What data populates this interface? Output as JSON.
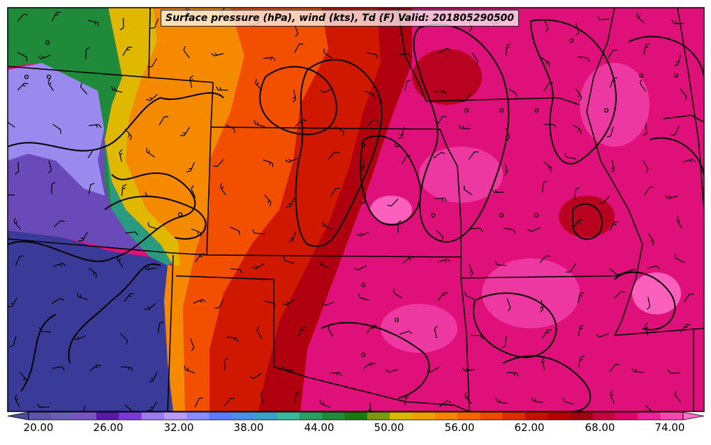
{
  "title": "Surface pressure (hPa), wind (kts), Td (F) Valid: 201805290500",
  "colorbar": {
    "labels": [
      "20.00",
      "26.00",
      "32.00",
      "38.00",
      "44.00",
      "50.00",
      "56.00",
      "62.00",
      "68.00",
      "74.00"
    ],
    "colors": [
      "#4b4b9a",
      "#5a55a8",
      "#6a5fb6",
      "#7a55c0",
      "#5a18a8",
      "#7a3ad8",
      "#9a7aee",
      "#b89cf8",
      "#8a8aff",
      "#5a7aff",
      "#4a90e8",
      "#3aa0c8",
      "#3ab89a",
      "#2aa060",
      "#1e8a3a",
      "#1a7a10",
      "#7a9a10",
      "#d8b800",
      "#f0a000",
      "#f88400",
      "#f86400",
      "#f04800",
      "#e02a00",
      "#c81000",
      "#b80000",
      "#a00010",
      "#c80040",
      "#e0006a",
      "#f0209a",
      "#f848b0",
      "#ff70c8"
    ]
  },
  "map": {
    "field": "dewpoint",
    "palette": {
      "deep_blue": "#3a3a98",
      "purple": "#6a4ab8",
      "light_purple": "#9a8aee",
      "teal": "#2a9a80",
      "green": "#1e8a3a",
      "yellow": "#e0b800",
      "orange": "#f58a00",
      "red_orange": "#f25000",
      "red": "#d01800",
      "dark_red": "#b00010",
      "magenta": "#e0107a",
      "pink": "#f040a8",
      "light_pink": "#ff70c8"
    }
  }
}
